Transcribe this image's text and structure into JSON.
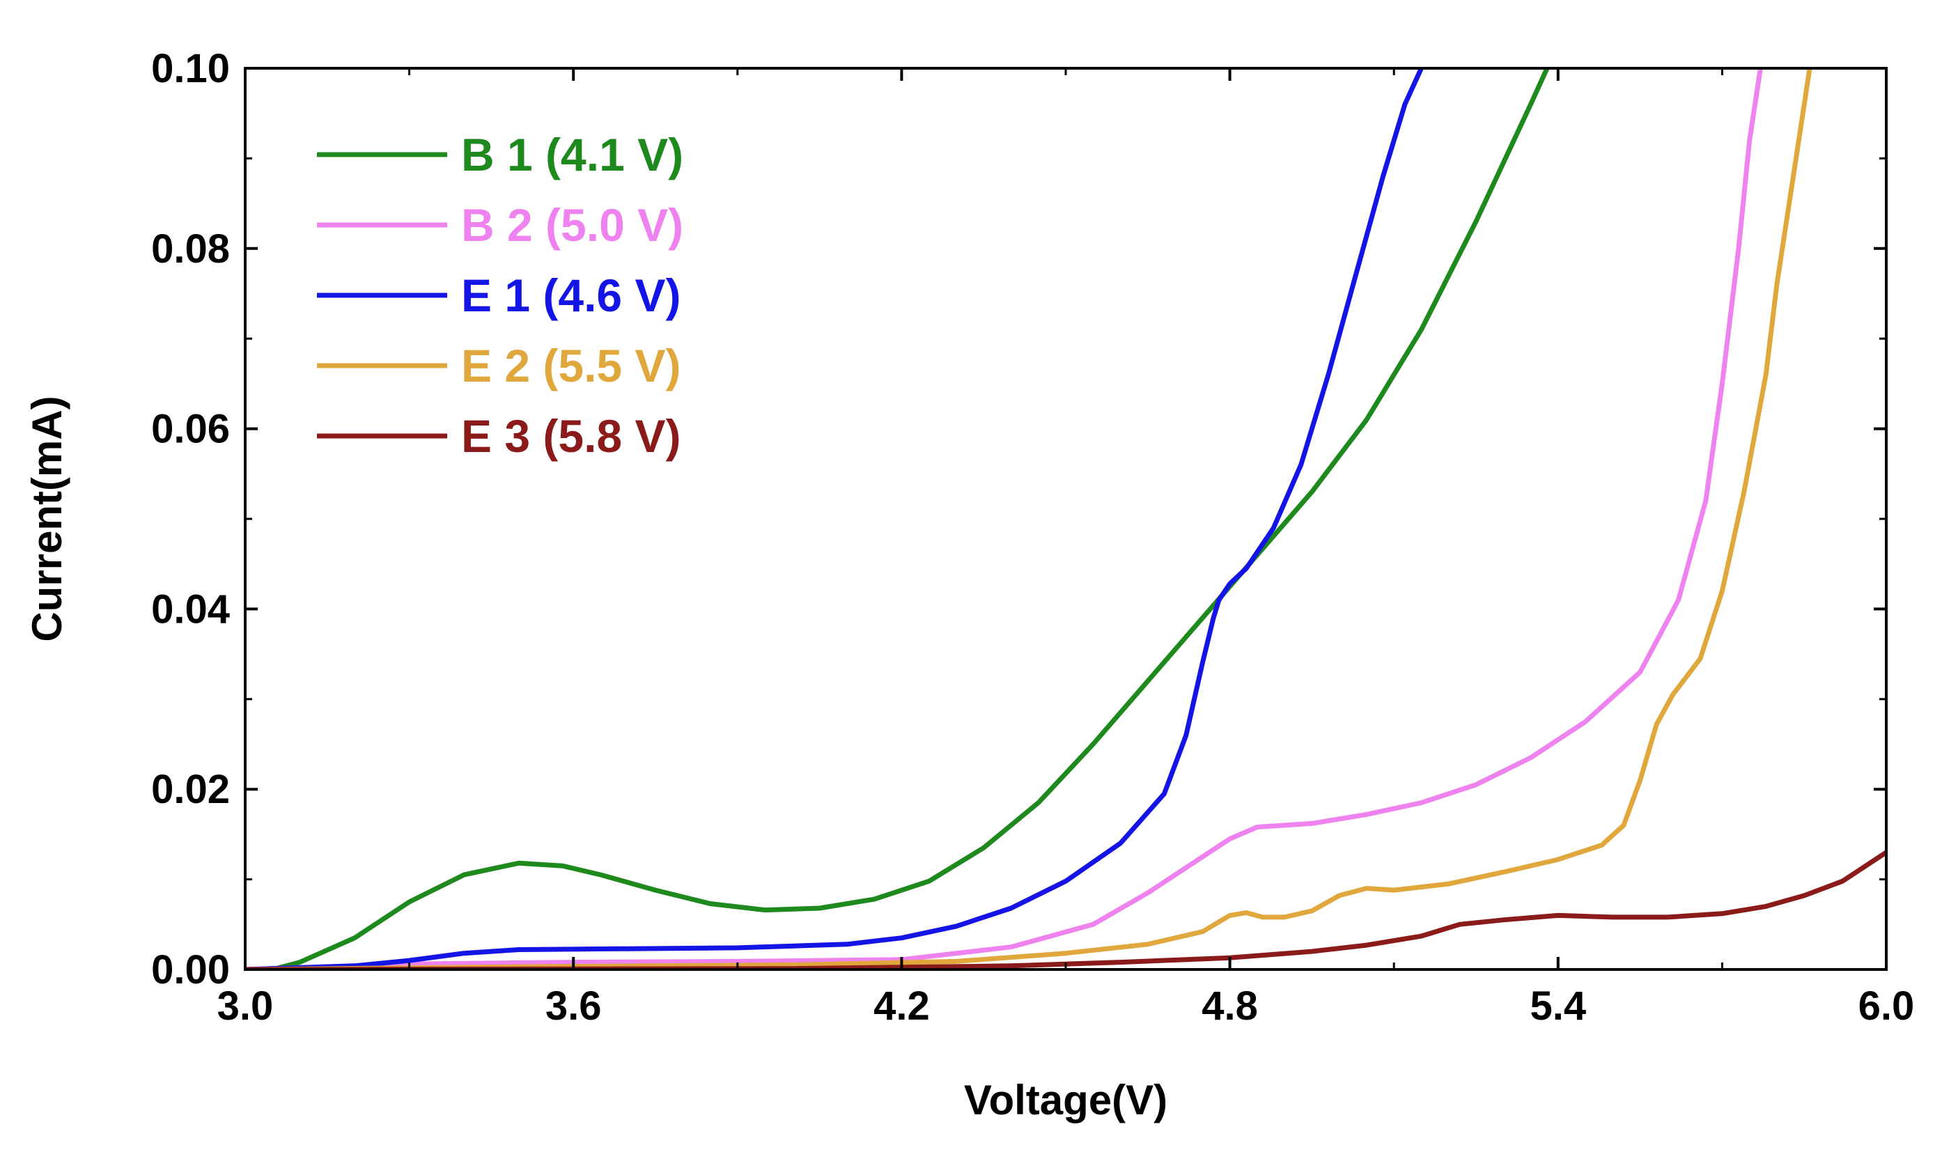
{
  "chart_data": {
    "type": "line",
    "xlabel": "Voltage(V)",
    "ylabel": "Current(mA)",
    "xlim": [
      3.0,
      6.0
    ],
    "ylim": [
      0.0,
      0.1
    ],
    "x_ticks": [
      "3.0",
      "3.6",
      "4.2",
      "4.8",
      "5.4",
      "6.0"
    ],
    "x_tick_values": [
      3.0,
      3.6,
      4.2,
      4.8,
      5.4,
      6.0
    ],
    "y_ticks": [
      "0.00",
      "0.02",
      "0.04",
      "0.06",
      "0.08",
      "0.10"
    ],
    "y_tick_values": [
      0.0,
      0.02,
      0.04,
      0.06,
      0.08,
      0.1
    ],
    "legend_position": "top-left",
    "series": [
      {
        "name": "B 1 (4.1 V)",
        "color": "#1e8a1e",
        "points": [
          [
            3.0,
            0.0
          ],
          [
            3.05,
            0.0
          ],
          [
            3.1,
            0.0008
          ],
          [
            3.2,
            0.0035
          ],
          [
            3.3,
            0.0075
          ],
          [
            3.4,
            0.0105
          ],
          [
            3.5,
            0.0118
          ],
          [
            3.58,
            0.0115
          ],
          [
            3.65,
            0.0105
          ],
          [
            3.75,
            0.0088
          ],
          [
            3.85,
            0.0073
          ],
          [
            3.95,
            0.0066
          ],
          [
            4.05,
            0.0068
          ],
          [
            4.15,
            0.0078
          ],
          [
            4.25,
            0.0098
          ],
          [
            4.35,
            0.0135
          ],
          [
            4.45,
            0.0185
          ],
          [
            4.55,
            0.025
          ],
          [
            4.65,
            0.032
          ],
          [
            4.75,
            0.039
          ],
          [
            4.85,
            0.046
          ],
          [
            4.95,
            0.053
          ],
          [
            5.05,
            0.061
          ],
          [
            5.15,
            0.071
          ],
          [
            5.25,
            0.083
          ],
          [
            5.35,
            0.096
          ],
          [
            5.38,
            0.1
          ]
        ]
      },
      {
        "name": "B 2 (5.0 V)",
        "color": "#ee82ee",
        "points": [
          [
            3.0,
            0.0
          ],
          [
            3.3,
            0.0006
          ],
          [
            3.6,
            0.0008
          ],
          [
            3.9,
            0.0009
          ],
          [
            4.2,
            0.0011
          ],
          [
            4.4,
            0.0025
          ],
          [
            4.55,
            0.005
          ],
          [
            4.65,
            0.0085
          ],
          [
            4.75,
            0.0125
          ],
          [
            4.8,
            0.0145
          ],
          [
            4.85,
            0.0158
          ],
          [
            4.95,
            0.0162
          ],
          [
            5.05,
            0.0172
          ],
          [
            5.15,
            0.0185
          ],
          [
            5.25,
            0.0205
          ],
          [
            5.35,
            0.0235
          ],
          [
            5.45,
            0.0275
          ],
          [
            5.55,
            0.033
          ],
          [
            5.62,
            0.041
          ],
          [
            5.67,
            0.052
          ],
          [
            5.7,
            0.065
          ],
          [
            5.73,
            0.08
          ],
          [
            5.75,
            0.092
          ],
          [
            5.77,
            0.1
          ]
        ]
      },
      {
        "name": "E 1 (4.6 V)",
        "color": "#1414e6",
        "points": [
          [
            3.0,
            0.0
          ],
          [
            3.2,
            0.0004
          ],
          [
            3.3,
            0.001
          ],
          [
            3.4,
            0.0018
          ],
          [
            3.5,
            0.0022
          ],
          [
            3.7,
            0.0023
          ],
          [
            3.9,
            0.0024
          ],
          [
            4.1,
            0.0028
          ],
          [
            4.2,
            0.0035
          ],
          [
            4.3,
            0.0048
          ],
          [
            4.4,
            0.0068
          ],
          [
            4.5,
            0.0098
          ],
          [
            4.6,
            0.014
          ],
          [
            4.68,
            0.0195
          ],
          [
            4.72,
            0.026
          ],
          [
            4.75,
            0.034
          ],
          [
            4.77,
            0.039
          ],
          [
            4.78,
            0.041
          ],
          [
            4.8,
            0.0428
          ],
          [
            4.83,
            0.0445
          ],
          [
            4.88,
            0.049
          ],
          [
            4.93,
            0.056
          ],
          [
            4.98,
            0.066
          ],
          [
            5.03,
            0.077
          ],
          [
            5.08,
            0.088
          ],
          [
            5.12,
            0.096
          ],
          [
            5.15,
            0.1
          ]
        ]
      },
      {
        "name": "E 2 (5.5 V)",
        "color": "#e0a83c",
        "points": [
          [
            3.0,
            0.0
          ],
          [
            3.5,
            0.0003
          ],
          [
            4.0,
            0.0005
          ],
          [
            4.3,
            0.0009
          ],
          [
            4.5,
            0.0018
          ],
          [
            4.65,
            0.0028
          ],
          [
            4.75,
            0.0042
          ],
          [
            4.8,
            0.006
          ],
          [
            4.83,
            0.0063
          ],
          [
            4.86,
            0.0058
          ],
          [
            4.9,
            0.0058
          ],
          [
            4.95,
            0.0065
          ],
          [
            5.0,
            0.0082
          ],
          [
            5.05,
            0.009
          ],
          [
            5.1,
            0.0088
          ],
          [
            5.2,
            0.0095
          ],
          [
            5.3,
            0.0108
          ],
          [
            5.4,
            0.0122
          ],
          [
            5.48,
            0.0138
          ],
          [
            5.52,
            0.016
          ],
          [
            5.55,
            0.021
          ],
          [
            5.58,
            0.0272
          ],
          [
            5.61,
            0.0305
          ],
          [
            5.66,
            0.0345
          ],
          [
            5.7,
            0.042
          ],
          [
            5.74,
            0.053
          ],
          [
            5.78,
            0.066
          ],
          [
            5.8,
            0.076
          ],
          [
            5.83,
            0.088
          ],
          [
            5.86,
            0.1
          ]
        ]
      },
      {
        "name": "E 3 (5.8 V)",
        "color": "#8b1a1a",
        "points": [
          [
            3.0,
            0.0
          ],
          [
            4.0,
            0.0001
          ],
          [
            4.4,
            0.0004
          ],
          [
            4.6,
            0.0008
          ],
          [
            4.8,
            0.0013
          ],
          [
            4.95,
            0.002
          ],
          [
            5.05,
            0.0027
          ],
          [
            5.15,
            0.0037
          ],
          [
            5.22,
            0.005
          ],
          [
            5.3,
            0.0055
          ],
          [
            5.4,
            0.006
          ],
          [
            5.5,
            0.0058
          ],
          [
            5.6,
            0.0058
          ],
          [
            5.7,
            0.0062
          ],
          [
            5.78,
            0.007
          ],
          [
            5.85,
            0.0082
          ],
          [
            5.92,
            0.0098
          ],
          [
            6.0,
            0.013
          ]
        ]
      }
    ]
  }
}
